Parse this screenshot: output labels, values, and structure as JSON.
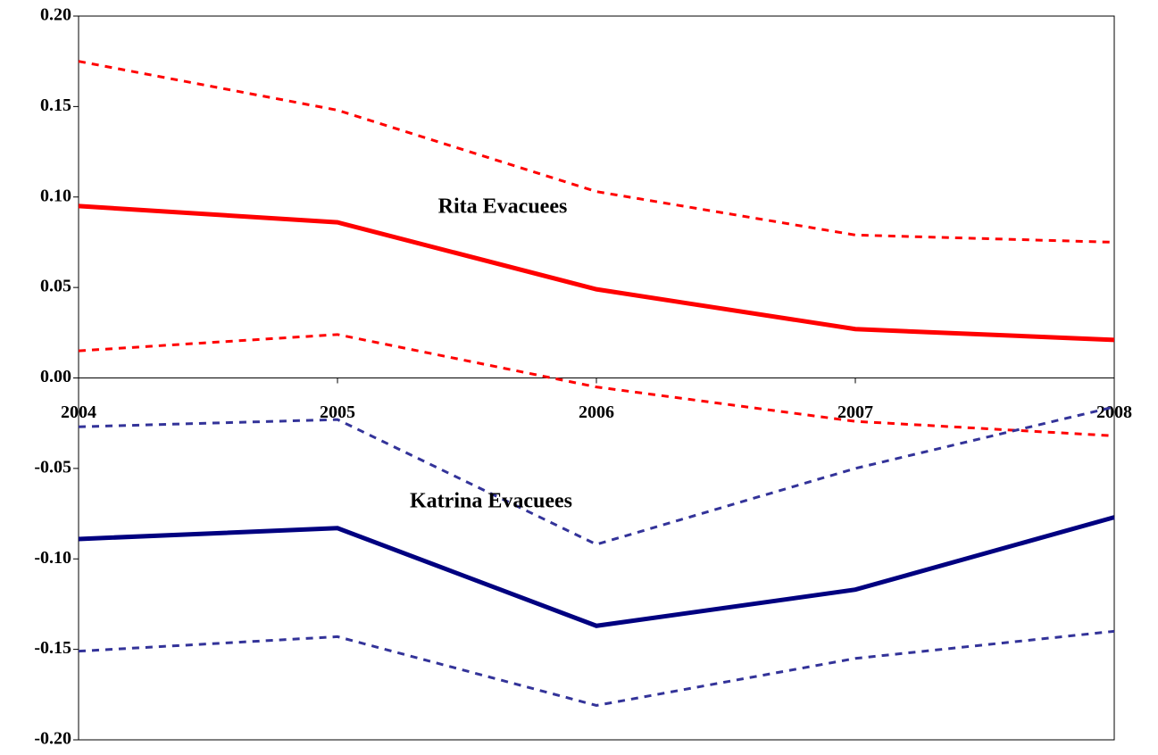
{
  "chart_data": {
    "type": "line",
    "categories": [
      "2004",
      "2005",
      "2006",
      "2007",
      "2008"
    ],
    "series": [
      {
        "color": "#ff0000",
        "dash": false,
        "values": [
          0.095,
          0.086,
          0.049,
          0.027,
          0.021
        ]
      },
      {
        "color": "#ff0000",
        "dash": true,
        "values": [
          0.175,
          0.148,
          0.103,
          0.079,
          0.075
        ]
      },
      {
        "color": "#ff0000",
        "dash": true,
        "values": [
          0.015,
          0.024,
          -0.005,
          -0.024,
          -0.032
        ]
      },
      {
        "color": "#000080",
        "dash": false,
        "values": [
          -0.089,
          -0.083,
          -0.137,
          -0.117,
          -0.077
        ]
      },
      {
        "color": "#333399",
        "dash": true,
        "values": [
          -0.027,
          -0.023,
          -0.092,
          -0.05,
          -0.016
        ]
      },
      {
        "color": "#333399",
        "dash": true,
        "values": [
          -0.151,
          -0.143,
          -0.181,
          -0.155,
          -0.14
        ]
      }
    ],
    "annotations": [
      "Rita Evacuees",
      "Katrina Evacuees"
    ],
    "ylim": [
      -0.2,
      0.2
    ],
    "yticks": [
      {
        "value": -0.2,
        "label": "-0.20"
      },
      {
        "value": -0.15,
        "label": "-0.15"
      },
      {
        "value": -0.1,
        "label": "-0.10"
      },
      {
        "value": -0.05,
        "label": "-0.05"
      },
      {
        "value": 0,
        "label": "0.00"
      },
      {
        "value": 0.05,
        "label": "0.05"
      },
      {
        "value": 0.1,
        "label": "0.10"
      },
      {
        "value": 0.15,
        "label": "0.15"
      },
      {
        "value": 0.2,
        "label": "0.20"
      }
    ],
    "grid": false
  }
}
